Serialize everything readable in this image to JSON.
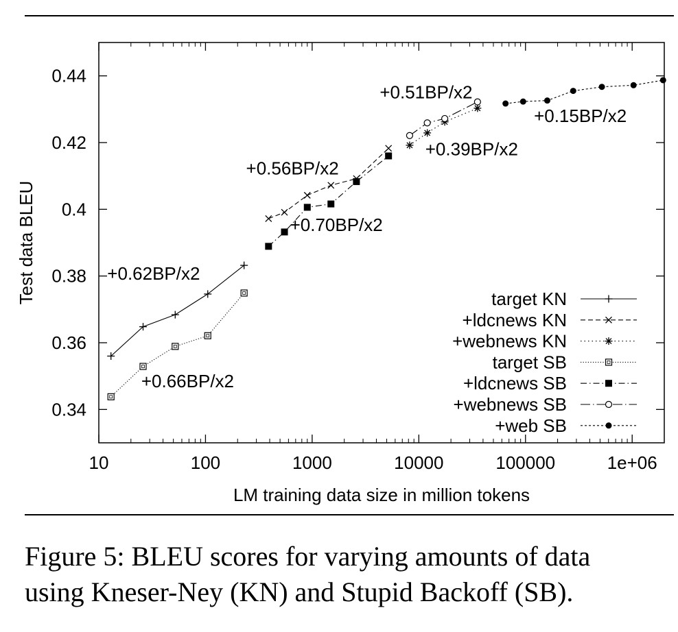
{
  "chart_data": {
    "type": "line",
    "xlabel": "LM training data size in million tokens",
    "ylabel": "Test data BLEU",
    "xscale": "log",
    "xlim": [
      10,
      2000000
    ],
    "ylim": [
      0.33,
      0.45
    ],
    "xticks": [
      10,
      100,
      1000,
      10000,
      100000,
      1000000
    ],
    "xtick_labels": [
      "10",
      "100",
      "1000",
      "10000",
      "100000",
      "1e+06"
    ],
    "yticks": [
      0.34,
      0.36,
      0.38,
      0.4,
      0.42,
      0.44
    ],
    "ytick_labels": [
      "0.34",
      "0.36",
      "0.38",
      "0.4",
      "0.42",
      "0.44"
    ],
    "grid": false,
    "legend_position": "bottom-right",
    "series": [
      {
        "name": "target KN",
        "marker": "plus",
        "dash": "solid",
        "x": [
          13,
          26,
          52,
          105,
          230
        ],
        "y": [
          0.356,
          0.3648,
          0.3684,
          0.3746,
          0.3832
        ]
      },
      {
        "name": "+ldcnews KN",
        "marker": "cross",
        "dash": "dashed",
        "x": [
          390,
          550,
          900,
          1500,
          2600,
          5200
        ],
        "y": [
          0.3972,
          0.3991,
          0.4042,
          0.4072,
          0.4092,
          0.4183
        ]
      },
      {
        "name": "+webnews KN",
        "marker": "asterisk",
        "dash": "dotted",
        "x": [
          8200,
          12000,
          17500,
          35500
        ],
        "y": [
          0.4192,
          0.4229,
          0.4262,
          0.4303
        ]
      },
      {
        "name": "target SB",
        "marker": "open-square",
        "dash": "finedot",
        "x": [
          13,
          26,
          52,
          105,
          230
        ],
        "y": [
          0.3438,
          0.3529,
          0.3589,
          0.3621,
          0.3749
        ]
      },
      {
        "name": "+ldcnews SB",
        "marker": "filled-square",
        "dash": "dashdot",
        "x": [
          390,
          550,
          900,
          1500,
          2600,
          5200
        ],
        "y": [
          0.3889,
          0.3932,
          0.4006,
          0.4016,
          0.4083,
          0.416
        ]
      },
      {
        "name": "+webnews SB",
        "marker": "open-circle",
        "dash": "longdashdot",
        "x": [
          8200,
          12000,
          17500,
          35500
        ],
        "y": [
          0.4221,
          0.4259,
          0.4272,
          0.4322
        ]
      },
      {
        "name": "+web SB",
        "marker": "filled-circle",
        "dash": "shortdash",
        "x": [
          65000,
          95000,
          160000,
          280000,
          520000,
          1030000,
          1950000
        ],
        "y": [
          0.4317,
          0.4323,
          0.4326,
          0.4355,
          0.4367,
          0.4372,
          0.4387
        ]
      }
    ],
    "annotations": [
      {
        "text": "+0.62BP/x2",
        "x": 12,
        "y": 0.3789
      },
      {
        "text": "+0.66BP/x2",
        "x": 25,
        "y": 0.3466
      },
      {
        "text": "+0.56BP/x2",
        "x": 240,
        "y": 0.4104
      },
      {
        "text": "+0.70BP/x2",
        "x": 620,
        "y": 0.3935
      },
      {
        "text": "+0.51BP/x2",
        "x": 4300,
        "y": 0.4333
      },
      {
        "text": "+0.39BP/x2",
        "x": 11500,
        "y": 0.4162
      },
      {
        "text": "+0.15BP/x2",
        "x": 120000,
        "y": 0.4262
      }
    ]
  },
  "caption": {
    "line1": "Figure 5: BLEU scores for varying amounts of data",
    "line2": "using Kneser-Ney (KN) and Stupid Backoff (SB)."
  }
}
